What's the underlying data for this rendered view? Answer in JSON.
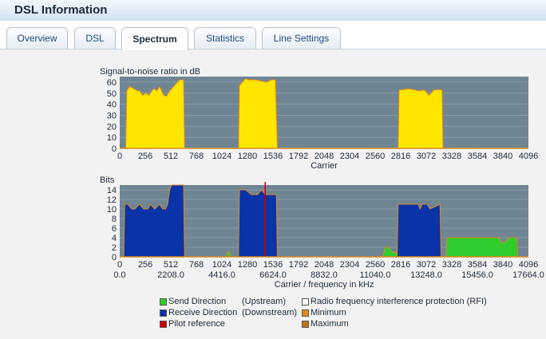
{
  "header": {
    "title": "DSL Information"
  },
  "tabs": [
    {
      "label": "Overview",
      "active": false
    },
    {
      "label": "DSL",
      "active": false
    },
    {
      "label": "Spectrum",
      "active": true
    },
    {
      "label": "Statistics",
      "active": false
    },
    {
      "label": "Line Settings",
      "active": false
    }
  ],
  "legend": {
    "send": "Send Direction",
    "upstream": "(Upstream)",
    "receive": "Receive Direction",
    "downstream": "(Downstream)",
    "pilot": "Pilot reference",
    "rfi": "Radio frequency interference protection (RFI)",
    "minimum": "Minimum",
    "maximum": "Maximum"
  },
  "colors": {
    "plot_bg": "#6f8593",
    "snr_fill": "#ffe600",
    "upstream": "#2ecc2e",
    "downstream": "#0a33a8",
    "pilot": "#cc0000",
    "min_max": "#e08a1e"
  },
  "chart_data": [
    {
      "type": "area",
      "ylabel": "Signal-to-noise ratio in dB",
      "xlabel": "Carrier",
      "xlim": [
        0,
        4096
      ],
      "ylim": [
        0,
        65
      ],
      "x_ticks": [
        0,
        256,
        512,
        768,
        1024,
        1280,
        1536,
        1792,
        2048,
        2304,
        2560,
        2816,
        3072,
        3328,
        3584,
        3840,
        4096
      ],
      "y_ticks": [
        0,
        10,
        20,
        30,
        40,
        50,
        60
      ],
      "series": [
        {
          "x": [
            0,
            60,
            70,
            100,
            140,
            180,
            200,
            230,
            260,
            290,
            330,
            350,
            370,
            400,
            440,
            470,
            480,
            500,
            600,
            640,
            650,
            1190,
            1200,
            1260,
            1300,
            1360,
            1420,
            1470,
            1520,
            1560,
            1580,
            2790,
            2800,
            2830,
            2900,
            3000,
            3050,
            3100,
            3150,
            3230,
            3240,
            4096
          ],
          "y": [
            0,
            0,
            52,
            56,
            54,
            52,
            52,
            48,
            50,
            48,
            53,
            54,
            52,
            56,
            48,
            47,
            49,
            52,
            62,
            62,
            0,
            0,
            57,
            63,
            62,
            62,
            61,
            60,
            62,
            62,
            0,
            0,
            53,
            53,
            54,
            52,
            53,
            48,
            53,
            53,
            0,
            0
          ]
        }
      ]
    },
    {
      "type": "area",
      "ylabel": "Bits",
      "xlabel": "Carrier / frequency in kHz",
      "xlim": [
        0,
        4096
      ],
      "ylim": [
        0,
        15
      ],
      "x_ticks": [
        0,
        256,
        512,
        768,
        1024,
        1280,
        1536,
        1792,
        2048,
        2304,
        2560,
        2816,
        3072,
        3328,
        3584,
        3840,
        4096
      ],
      "freq_ticks": [
        "0.0",
        "2208.0",
        "4416.0",
        "6624.0",
        "8832.0",
        "11040.0",
        "13248.0",
        "15456.0",
        "17664.0"
      ],
      "y_ticks": [
        0,
        2,
        4,
        6,
        8,
        10,
        12,
        14
      ],
      "series": [
        {
          "name": "Send Direction",
          "x": [
            0,
            1070,
            1080,
            1100,
            1110,
            2640,
            2660,
            2700,
            2730,
            3270,
            3280,
            3350,
            3800,
            3820,
            3860,
            3900,
            3980,
            3990,
            4096
          ],
          "y": [
            0,
            0,
            1,
            1,
            0,
            0,
            2,
            2,
            1,
            0,
            4,
            4,
            4,
            3,
            3,
            4,
            4,
            0,
            0
          ]
        },
        {
          "name": "Receive Direction",
          "x": [
            0,
            40,
            50,
            80,
            120,
            150,
            200,
            240,
            280,
            310,
            350,
            400,
            430,
            440,
            460,
            480,
            500,
            520,
            640,
            650,
            1190,
            1200,
            1260,
            1320,
            1380,
            1420,
            1460,
            1520,
            1570,
            1580,
            2780,
            2790,
            2990,
            3010,
            3030,
            3080,
            3110,
            3210,
            3220,
            4096
          ],
          "y": [
            0,
            0,
            11,
            11,
            10,
            10,
            11,
            10,
            10,
            11,
            10,
            11,
            10,
            10,
            10,
            11,
            14,
            15,
            15,
            0,
            0,
            14,
            14,
            13,
            13,
            14,
            13,
            13,
            13,
            0,
            0,
            11,
            11,
            10,
            11,
            11,
            10,
            11,
            0,
            0
          ]
        }
      ],
      "pilot_carrier": 1458
    }
  ]
}
